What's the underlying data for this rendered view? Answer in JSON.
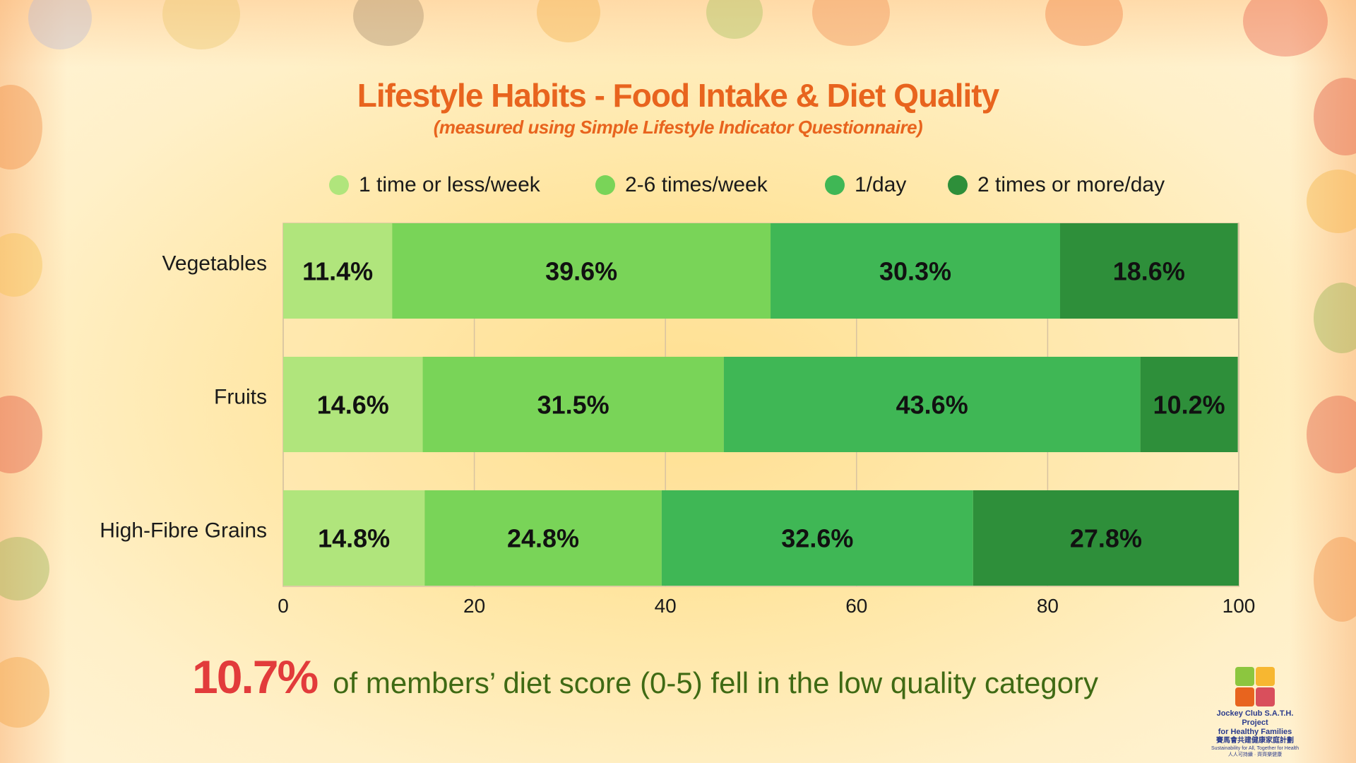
{
  "title": "Lifestyle Habits - Food Intake & Diet Quality",
  "subtitle": "(measured using Simple Lifestyle Indicator Questionnaire)",
  "colors": {
    "title": "#e8641e",
    "series": [
      "#b0e57c",
      "#79d458",
      "#3fb755",
      "#2e8f3a"
    ],
    "grid": "#d8c3a0",
    "footer_number": "#e23b3b",
    "footer_text": "#3f6a14"
  },
  "chart_data": {
    "type": "bar",
    "orientation": "horizontal",
    "stacked": true,
    "categories": [
      "Vegetables",
      "Fruits",
      "High-Fibre Grains"
    ],
    "series": [
      {
        "name": "1 time or less/week",
        "values": [
          11.4,
          14.6,
          14.8
        ],
        "labels": [
          "11.4%",
          "14.6%",
          "14.8%"
        ]
      },
      {
        "name": "2-6 times/week",
        "values": [
          39.6,
          31.5,
          24.8
        ],
        "labels": [
          "39.6%",
          "31.5%",
          "24.8%"
        ]
      },
      {
        "name": "1/day",
        "values": [
          30.3,
          43.6,
          32.6
        ],
        "labels": [
          "30.3%",
          "43.6%",
          "32.6%"
        ]
      },
      {
        "name": "2 times or more/day",
        "values": [
          18.6,
          10.2,
          27.8
        ],
        "labels": [
          "18.6%",
          "10.2%",
          "27.8%"
        ]
      }
    ],
    "xlim": [
      0,
      100
    ],
    "xticks": [
      0,
      20,
      40,
      60,
      80,
      100
    ],
    "grid": true,
    "legend_position": "top"
  },
  "footer": {
    "number": "10.7%",
    "text": "of members’ diet score (0-5) fell in the low quality category"
  },
  "logo": {
    "line1": "Jockey Club S.A.T.H. Project",
    "line2": "for Healthy Families",
    "line3": "賽馬會共建健康家庭計劃",
    "line4": "Sustainability for All, Together for Health",
    "line5": "人人可持續 · 齊齊樂健康"
  }
}
